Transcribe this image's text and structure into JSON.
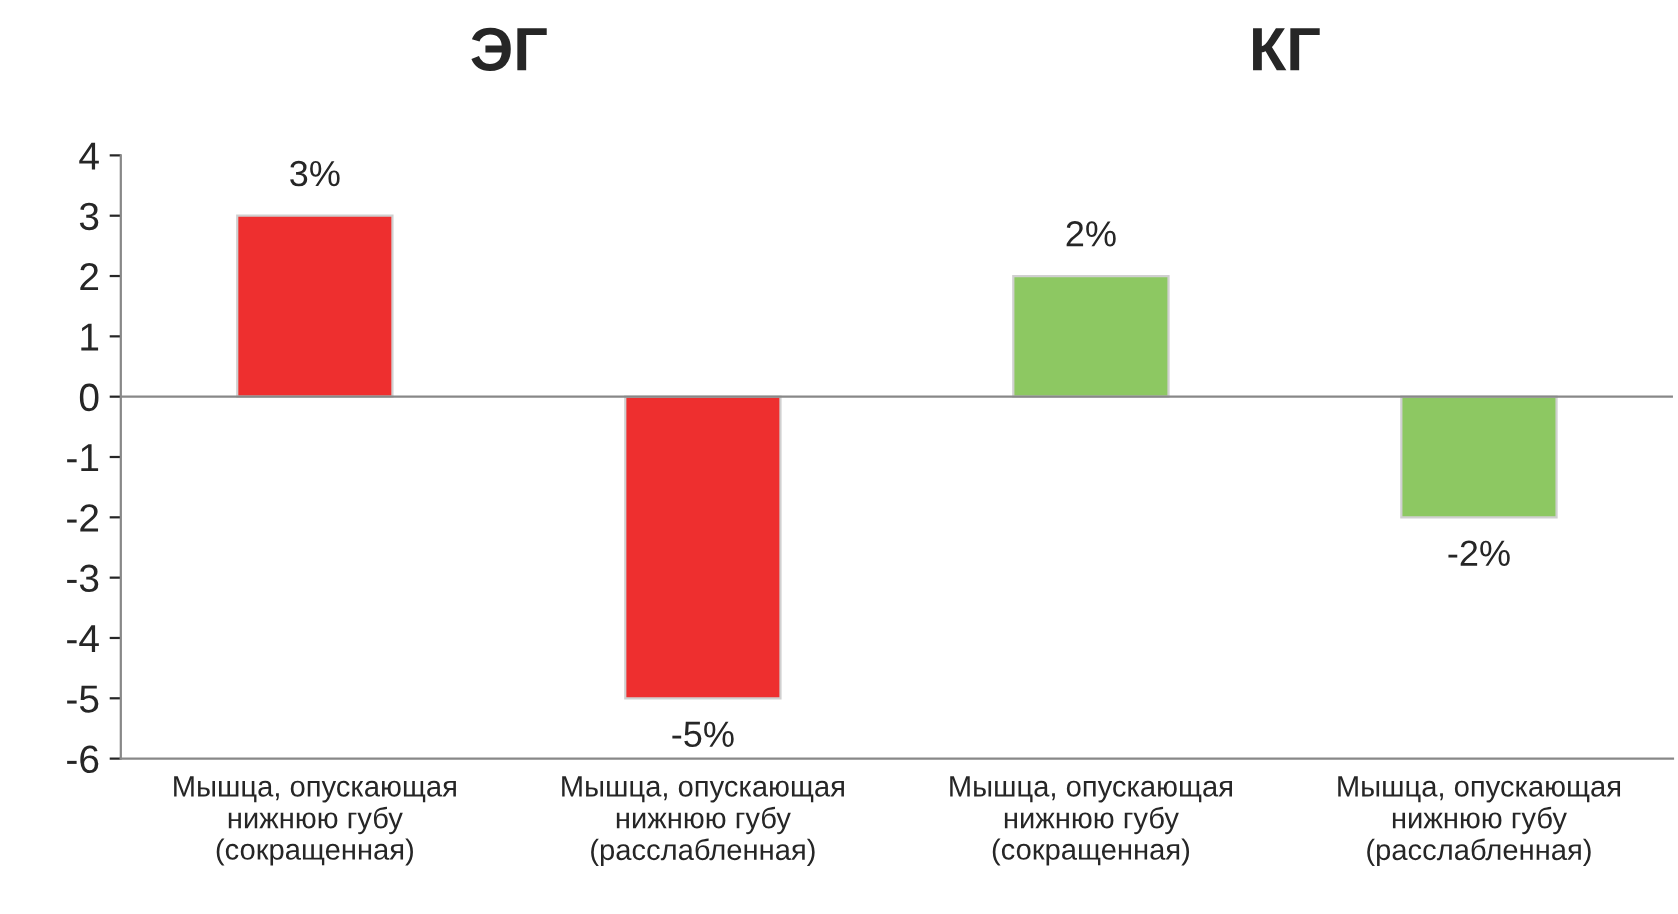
{
  "chart_data": {
    "type": "bar",
    "categories": [
      "Мышца, опускающая\nнижнюю губу\n(сокращенная)",
      "Мышца, опускающая\nнижнюю губу\n(расслабленная)",
      "Мышца, опускающая\nнижнюю губу\n(сокращенная)",
      "Мышца, опускающая\nнижнюю губу\n(расслабленная)"
    ],
    "values": [
      3,
      -5,
      2,
      -2
    ],
    "colors": [
      "#ee2f2f",
      "#ee2f2f",
      "#8dc862",
      "#8dc862"
    ],
    "value_labels": [
      "3%",
      "-5%",
      "2%",
      "-2%"
    ],
    "annotations": [
      "ЭГ",
      "КГ"
    ],
    "ylim": [
      -6,
      4
    ],
    "yticks": [
      -6,
      -5,
      -4,
      -3,
      -2,
      -1,
      0,
      1,
      2,
      3,
      4
    ],
    "ref_lines": [
      {
        "axis": "y",
        "value": 0,
        "color": "#888888"
      }
    ],
    "grid": false
  }
}
